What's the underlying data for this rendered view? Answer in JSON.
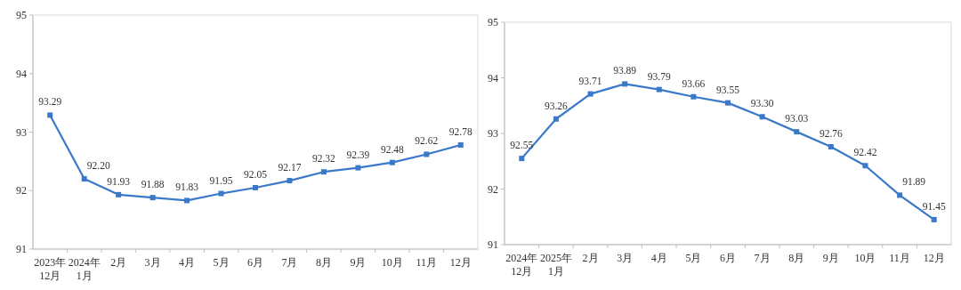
{
  "chart_data": [
    {
      "type": "line",
      "categories": [
        "2023年\n12月",
        "2024年\n1月",
        "2月",
        "3月",
        "4月",
        "5月",
        "6月",
        "7月",
        "8月",
        "9月",
        "10月",
        "11月",
        "12月"
      ],
      "series": [
        {
          "color": "#3a78c9",
          "values": [
            93.29,
            92.2,
            91.93,
            91.88,
            91.83,
            91.95,
            92.05,
            92.17,
            92.32,
            92.39,
            92.48,
            92.62,
            92.78
          ],
          "value_labels": [
            "93.29",
            "92.20",
            "91.93",
            "91.88",
            "91.83",
            "91.95",
            "92.05",
            "92.17",
            "92.32",
            "92.39",
            "92.48",
            "92.62",
            "92.78"
          ]
        }
      ],
      "ylim": [
        91,
        95
      ],
      "yticks": [
        91,
        92,
        93,
        94,
        95
      ],
      "marker": "square"
    },
    {
      "type": "line",
      "categories": [
        "2024年\n12月",
        "2025年\n1月",
        "2月",
        "3月",
        "4月",
        "5月",
        "6月",
        "7月",
        "8月",
        "9月",
        "10月",
        "11月",
        "12月"
      ],
      "series": [
        {
          "color": "#3a78c9",
          "values": [
            92.55,
            93.26,
            93.71,
            93.89,
            93.79,
            93.66,
            93.55,
            93.3,
            93.03,
            92.76,
            92.42,
            91.89,
            91.45
          ],
          "value_labels": [
            "92.55",
            "93.26",
            "93.71",
            "93.89",
            "93.79",
            "93.66",
            "93.55",
            "93.30",
            "93.03",
            "92.76",
            "92.42",
            "91.89",
            "91.45"
          ]
        }
      ],
      "ylim": [
        91,
        95
      ],
      "yticks": [
        91,
        92,
        93,
        94,
        95
      ],
      "marker": "square"
    }
  ]
}
